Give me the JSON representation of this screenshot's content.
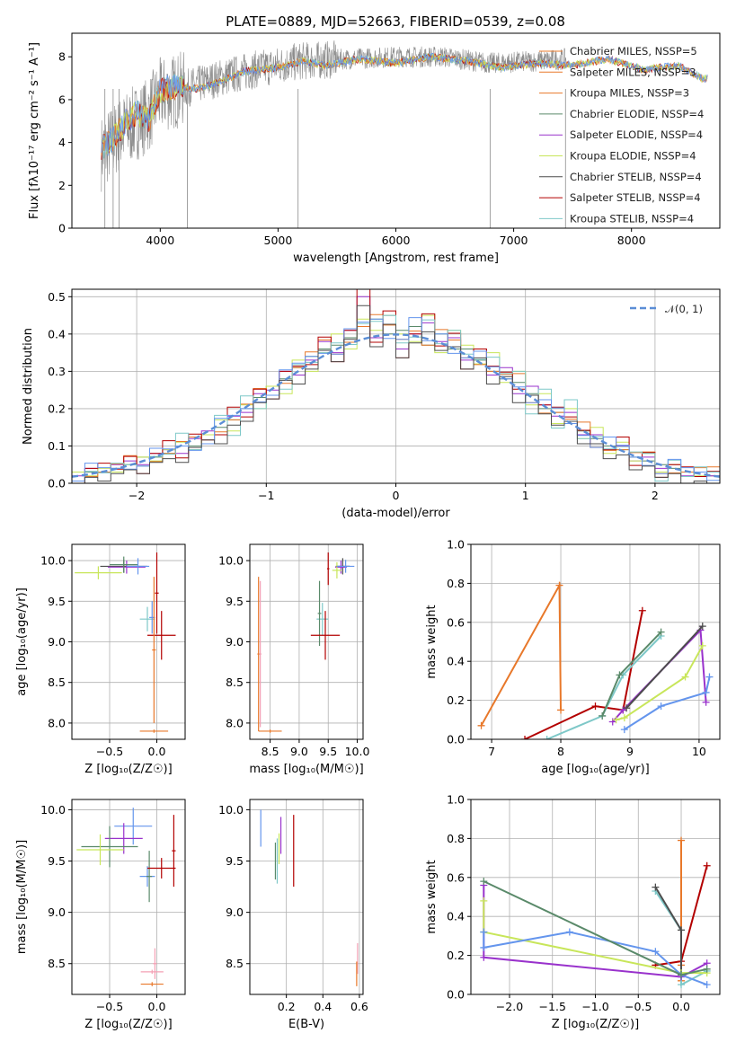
{
  "title": "PLATE=0889, MJD=52663, FIBERID=0539, z=0.08",
  "chart_data": [
    {
      "id": "spectrum",
      "type": "line",
      "xlabel": "wavelength [Angstrom, rest frame]",
      "ylabel": "Flux [fλ10⁻¹⁷ erg cm⁻² s⁻¹ A⁻¹]",
      "xlim": [
        3250,
        8750
      ],
      "ylim": [
        0,
        9.1
      ],
      "xticks": [
        "4000",
        "5000",
        "6000",
        "7000",
        "8000"
      ],
      "yticks": [
        "0",
        "2",
        "4",
        "6",
        "8"
      ],
      "legend": [
        "Chabrier MILES, NSSP=5",
        "Salpeter MILES, NSSP=3",
        "Kroupa MILES, NSSP=3",
        "Chabrier ELODIE, NSSP=4",
        "Salpeter ELODIE, NSSP=4",
        "Kroupa ELODIE, NSSP=4",
        "Chabrier STELIB, NSSP=4",
        "Salpeter STELIB, NSSP=4",
        "Kroupa STELIB, NSSP=4"
      ],
      "legend_position": "right",
      "observed": {
        "x": [
          3500,
          3700,
          3900,
          4000,
          4200,
          4500,
          4800,
          5200,
          5600,
          6000,
          6400,
          6800,
          7200,
          7450
        ],
        "y": [
          3.5,
          4.6,
          5.3,
          6.2,
          6.5,
          7.0,
          7.4,
          7.8,
          7.9,
          8.0,
          8.0,
          7.7,
          7.8,
          7.9
        ]
      },
      "models": [
        {
          "x": [
            3500,
            3600,
            3700,
            3800,
            3900,
            4000,
            4100,
            4300,
            4500,
            4700,
            5000,
            5200,
            5400,
            5700,
            6000,
            6300,
            6600,
            6900,
            7200,
            7500,
            7800,
            8100,
            8400,
            8600
          ],
          "y": [
            3.7,
            4.2,
            4.9,
            5.4,
            5.0,
            6.4,
            6.6,
            6.5,
            6.8,
            7.3,
            7.5,
            7.8,
            7.6,
            7.9,
            7.7,
            8.0,
            7.8,
            7.5,
            7.7,
            7.6,
            7.9,
            7.4,
            7.6,
            7.0
          ]
        }
      ]
    },
    {
      "id": "residuals",
      "type": "histogram",
      "xlabel": "(data-model)/error",
      "ylabel": "Normed distribution",
      "xlim": [
        -2.5,
        2.5
      ],
      "ylim": [
        0,
        0.52
      ],
      "xticks": [
        "−2",
        "−1",
        "0",
        "1",
        "2"
      ],
      "yticks": [
        "0.0",
        "0.1",
        "0.2",
        "0.3",
        "0.4",
        "0.5"
      ],
      "legend": [
        "𝒩(0, 1)"
      ],
      "legend_position": "top-right",
      "bins": [
        -2.5,
        -2.4,
        -2.3,
        -2.2,
        -2.1,
        -2.0,
        -1.9,
        -1.8,
        -1.7,
        -1.6,
        -1.5,
        -1.4,
        -1.3,
        -1.2,
        -1.1,
        -1.0,
        -0.9,
        -0.8,
        -0.7,
        -0.6,
        -0.5,
        -0.4,
        -0.3,
        -0.2,
        -0.1,
        0.0,
        0.1,
        0.2,
        0.3,
        0.4,
        0.5,
        0.6,
        0.7,
        0.8,
        0.9,
        1.0,
        1.1,
        1.2,
        1.3,
        1.4,
        1.5,
        1.6,
        1.7,
        1.8,
        1.9,
        2.0,
        2.1,
        2.2,
        2.3,
        2.4,
        2.5
      ],
      "histograms": [
        [
          0.03,
          0.03,
          0.03,
          0.04,
          0.05,
          0.07,
          0.07,
          0.08,
          0.1,
          0.1,
          0.13,
          0.15,
          0.17,
          0.2,
          0.23,
          0.26,
          0.28,
          0.31,
          0.34,
          0.36,
          0.37,
          0.39,
          0.42,
          0.44,
          0.4,
          0.41,
          0.42,
          0.37,
          0.4,
          0.36,
          0.36,
          0.33,
          0.3,
          0.28,
          0.27,
          0.24,
          0.2,
          0.19,
          0.16,
          0.14,
          0.12,
          0.1,
          0.09,
          0.07,
          0.06,
          0.05,
          0.04,
          0.03,
          0.03,
          0.02
        ],
        [
          0.02,
          0.04,
          0.03,
          0.05,
          0.06,
          0.05,
          0.08,
          0.09,
          0.08,
          0.12,
          0.14,
          0.13,
          0.18,
          0.19,
          0.24,
          0.25,
          0.3,
          0.29,
          0.33,
          0.38,
          0.35,
          0.41,
          0.5,
          0.39,
          0.45,
          0.36,
          0.4,
          0.43,
          0.38,
          0.39,
          0.33,
          0.36,
          0.29,
          0.31,
          0.24,
          0.26,
          0.21,
          0.18,
          0.19,
          0.13,
          0.13,
          0.09,
          0.1,
          0.06,
          0.07,
          0.04,
          0.05,
          0.02,
          0.03,
          0.02
        ],
        [
          0.03,
          0.02,
          0.04,
          0.03,
          0.05,
          0.07,
          0.06,
          0.09,
          0.11,
          0.09,
          0.13,
          0.17,
          0.14,
          0.21,
          0.2,
          0.26,
          0.24,
          0.33,
          0.3,
          0.35,
          0.4,
          0.36,
          0.44,
          0.41,
          0.45,
          0.4,
          0.38,
          0.45,
          0.35,
          0.41,
          0.37,
          0.32,
          0.35,
          0.27,
          0.3,
          0.21,
          0.24,
          0.16,
          0.2,
          0.12,
          0.15,
          0.08,
          0.11,
          0.06,
          0.08,
          0.03,
          0.05,
          0.03,
          0.02,
          0.03
        ]
      ],
      "normal": {
        "x": [
          -2.5,
          -2.0,
          -1.5,
          -1.0,
          -0.5,
          0.0,
          0.5,
          1.0,
          1.5,
          2.0,
          2.5
        ],
        "y": [
          0.018,
          0.054,
          0.13,
          0.242,
          0.352,
          0.399,
          0.352,
          0.242,
          0.13,
          0.054,
          0.018
        ]
      }
    },
    {
      "id": "age-vs-Z",
      "type": "scatter",
      "xlabel": "Z [log₁₀(Z/Z☉)]",
      "ylabel": "age  [log₁₀(age/yr)]",
      "xlim": [
        -0.9,
        0.3
      ],
      "ylim": [
        7.8,
        10.2
      ],
      "xticks": [
        "−0.5",
        "0.0"
      ],
      "yticks": [
        "8.0",
        "8.5",
        "9.0",
        "9.5",
        "10.0"
      ],
      "points": [
        {
          "x": -0.35,
          "y": 9.93,
          "xerr": 0.25,
          "yerr": 0.08,
          "color": "#4d4d4d"
        },
        {
          "x": -0.32,
          "y": 9.92,
          "xerr": 0.2,
          "yerr": 0.08,
          "color": "#9932cc"
        },
        {
          "x": -0.62,
          "y": 9.85,
          "xerr": 0.25,
          "yerr": 0.08,
          "color": "#c8e65a"
        },
        {
          "x": -0.35,
          "y": 9.95,
          "xerr": 0.15,
          "yerr": 0.1,
          "color": "#5a8a6a"
        },
        {
          "x": -0.2,
          "y": 9.93,
          "xerr": 0.12,
          "yerr": 0.1,
          "color": "#6495ed"
        },
        {
          "x": -0.1,
          "y": 9.28,
          "xerr": 0.08,
          "yerr": 0.15,
          "color": "#7ec8c8"
        },
        {
          "x": -0.05,
          "y": 9.3,
          "xerr": 0.03,
          "yerr": 0.2,
          "color": "#6495ed"
        },
        {
          "x": 0.05,
          "y": 9.08,
          "xerr": 0.15,
          "yerr": 0.3,
          "color": "#b30000"
        },
        {
          "x": 0.0,
          "y": 9.6,
          "xerr": 0.02,
          "yerr": 0.5,
          "color": "#b30000"
        },
        {
          "x": -0.03,
          "y": 7.9,
          "xerr": 0.15,
          "yerr": 0.02,
          "color": "#e8782a"
        },
        {
          "x": -0.03,
          "y": 8.9,
          "xerr": 0.02,
          "yerr": 0.9,
          "color": "#e8782a"
        }
      ]
    },
    {
      "id": "age-vs-mass",
      "type": "scatter",
      "xlabel": "mass [log₁₀(M/M☉)]",
      "ylabel": "",
      "xlim": [
        8.15,
        10.1
      ],
      "ylim": [
        7.8,
        10.2
      ],
      "xticks": [
        "8.5",
        "9.0",
        "9.5",
        "10.0"
      ],
      "yticks": [
        "8.0",
        "8.5",
        "9.0",
        "9.5",
        "10.0"
      ],
      "points": [
        {
          "x": 9.75,
          "y": 9.93,
          "xerr": 0.12,
          "yerr": 0.1,
          "color": "#4d4d4d"
        },
        {
          "x": 9.72,
          "y": 9.92,
          "xerr": 0.1,
          "yerr": 0.08,
          "color": "#9932cc"
        },
        {
          "x": 9.65,
          "y": 9.88,
          "xerr": 0.08,
          "yerr": 0.1,
          "color": "#c8e65a"
        },
        {
          "x": 9.8,
          "y": 9.93,
          "xerr": 0.15,
          "yerr": 0.08,
          "color": "#6495ed"
        },
        {
          "x": 9.4,
          "y": 9.28,
          "xerr": 0.1,
          "yerr": 0.2,
          "color": "#7ec8c8"
        },
        {
          "x": 9.35,
          "y": 9.35,
          "xerr": 0.03,
          "yerr": 0.4,
          "color": "#5a8a6a"
        },
        {
          "x": 9.45,
          "y": 9.08,
          "xerr": 0.25,
          "yerr": 0.3,
          "color": "#b30000"
        },
        {
          "x": 9.5,
          "y": 9.9,
          "xerr": 0.02,
          "yerr": 0.2,
          "color": "#b30000"
        },
        {
          "x": 8.3,
          "y": 8.85,
          "xerr": 0.02,
          "yerr": 0.95,
          "color": "#e8782a"
        },
        {
          "x": 8.5,
          "y": 7.9,
          "xerr": 0.2,
          "yerr": 0.02,
          "color": "#e8782a"
        },
        {
          "x": 8.33,
          "y": 8.85,
          "xerr": 0.02,
          "yerr": 0.9,
          "color": "#f4a0b4"
        }
      ]
    },
    {
      "id": "mass-weight-vs-age",
      "type": "line",
      "xlabel": "age  [log₁₀(age/yr)]",
      "ylabel": "mass weight",
      "xlim": [
        6.7,
        10.3
      ],
      "ylim": [
        0,
        1
      ],
      "xticks": [
        "7",
        "8",
        "9",
        "10"
      ],
      "yticks": [
        "0.0",
        "0.2",
        "0.4",
        "0.6",
        "0.8",
        "1.0"
      ],
      "series": [
        {
          "color": "#e8782a",
          "x": [
            6.85,
            7.98,
            8.0
          ],
          "y": [
            0.07,
            0.79,
            0.15
          ]
        },
        {
          "color": "#b30000",
          "x": [
            7.48,
            8.5,
            8.9,
            9.18
          ],
          "y": [
            0.0,
            0.17,
            0.15,
            0.66
          ]
        },
        {
          "color": "#7ec8c8",
          "x": [
            7.8,
            8.6,
            8.9,
            9.45
          ],
          "y": [
            0.0,
            0.12,
            0.33,
            0.53
          ]
        },
        {
          "color": "#5a8a6a",
          "x": [
            8.6,
            8.85,
            9.45
          ],
          "y": [
            0.12,
            0.33,
            0.55
          ]
        },
        {
          "color": "#9932cc",
          "x": [
            8.75,
            8.9,
            10.02,
            10.1
          ],
          "y": [
            0.09,
            0.15,
            0.56,
            0.19
          ]
        },
        {
          "color": "#c8e65a",
          "x": [
            8.8,
            8.92,
            9.8,
            10.05
          ],
          "y": [
            0.1,
            0.11,
            0.32,
            0.48
          ]
        },
        {
          "color": "#6495ed",
          "x": [
            8.92,
            9.45,
            10.1,
            10.15
          ],
          "y": [
            0.05,
            0.17,
            0.24,
            0.32
          ]
        },
        {
          "color": "#4d4d4d",
          "x": [
            8.95,
            10.05
          ],
          "y": [
            0.16,
            0.58
          ]
        }
      ]
    },
    {
      "id": "mass-vs-Z",
      "type": "scatter",
      "xlabel": "Z [log₁₀(Z/Z☉)]",
      "ylabel": "mass [log₁₀(M/M☉)]",
      "xlim": [
        -0.9,
        0.3
      ],
      "ylim": [
        8.2,
        10.1
      ],
      "xticks": [
        "−0.5",
        "0.0"
      ],
      "yticks": [
        "8.5",
        "9.0",
        "9.5",
        "10.0"
      ],
      "points": [
        {
          "x": -0.25,
          "y": 9.84,
          "xerr": 0.2,
          "yerr": 0.18,
          "color": "#6495ed"
        },
        {
          "x": -0.35,
          "y": 9.72,
          "xerr": 0.2,
          "yerr": 0.15,
          "color": "#9932cc"
        },
        {
          "x": -0.5,
          "y": 9.64,
          "xerr": 0.3,
          "yerr": 0.2,
          "color": "#5a8a6a"
        },
        {
          "x": -0.6,
          "y": 9.61,
          "xerr": 0.25,
          "yerr": 0.15,
          "color": "#c8e65a"
        },
        {
          "x": -0.1,
          "y": 9.35,
          "xerr": 0.08,
          "yerr": 0.1,
          "color": "#6495ed"
        },
        {
          "x": -0.08,
          "y": 9.35,
          "xerr": 0.03,
          "yerr": 0.25,
          "color": "#5a8a6a"
        },
        {
          "x": 0.05,
          "y": 9.43,
          "xerr": 0.15,
          "yerr": 0.1,
          "color": "#b30000"
        },
        {
          "x": 0.18,
          "y": 9.6,
          "xerr": 0.02,
          "yerr": 0.35,
          "color": "#b30000"
        },
        {
          "x": -0.05,
          "y": 8.42,
          "xerr": 0.12,
          "yerr": 0.02,
          "color": "#f4a0b4"
        },
        {
          "x": -0.05,
          "y": 8.3,
          "xerr": 0.12,
          "yerr": 0.02,
          "color": "#e8782a"
        },
        {
          "x": -0.02,
          "y": 8.5,
          "xerr": 0.02,
          "yerr": 0.15,
          "color": "#f4a0b4"
        }
      ]
    },
    {
      "id": "mass-vs-ebv",
      "type": "scatter",
      "xlabel": "E(B-V)",
      "ylabel": "",
      "xlim": [
        0.0,
        0.62
      ],
      "ylim": [
        8.2,
        10.1
      ],
      "xticks": [
        "0.2",
        "0.4",
        "0.6"
      ],
      "yticks": [
        "8.5",
        "9.0",
        "9.5",
        "10.0"
      ],
      "points": [
        {
          "x": 0.06,
          "y": 9.82,
          "xerr": 0.0,
          "yerr": 0.18,
          "color": "#6495ed"
        },
        {
          "x": 0.17,
          "y": 9.75,
          "xerr": 0.0,
          "yerr": 0.18,
          "color": "#9932cc"
        },
        {
          "x": 0.16,
          "y": 9.62,
          "xerr": 0.0,
          "yerr": 0.15,
          "color": "#c8e65a"
        },
        {
          "x": 0.14,
          "y": 9.5,
          "xerr": 0.0,
          "yerr": 0.18,
          "color": "#5a8a6a"
        },
        {
          "x": 0.15,
          "y": 9.5,
          "xerr": 0.0,
          "yerr": 0.22,
          "color": "#7ec8c8"
        },
        {
          "x": 0.24,
          "y": 9.6,
          "xerr": 0.0,
          "yerr": 0.35,
          "color": "#b30000"
        },
        {
          "x": 0.59,
          "y": 8.55,
          "xerr": 0.0,
          "yerr": 0.15,
          "color": "#f4a0b4"
        },
        {
          "x": 0.585,
          "y": 8.4,
          "xerr": 0.0,
          "yerr": 0.12,
          "color": "#e8782a"
        }
      ]
    },
    {
      "id": "mass-weight-vs-Z",
      "type": "line",
      "xlabel": "Z [log₁₀(Z/Z☉)]",
      "ylabel": "mass weight",
      "xlim": [
        -2.45,
        0.45
      ],
      "ylim": [
        0,
        1
      ],
      "xticks": [
        "−2.0",
        "−1.5",
        "−1.0",
        "−0.5",
        "0.0"
      ],
      "yticks": [
        "0.0",
        "0.2",
        "0.4",
        "0.6",
        "0.8",
        "1.0"
      ],
      "series": [
        {
          "color": "#e8782a",
          "x": [
            0.0,
            0.0,
            0.0
          ],
          "y": [
            0.79,
            0.07,
            0.15
          ]
        },
        {
          "color": "#b30000",
          "x": [
            -0.3,
            0.0,
            0.3
          ],
          "y": [
            0.15,
            0.17,
            0.66
          ]
        },
        {
          "color": "#7ec8c8",
          "x": [
            -0.3,
            0.0,
            0.0,
            0.3
          ],
          "y": [
            0.53,
            0.33,
            0.05,
            0.12
          ]
        },
        {
          "color": "#4d4d4d",
          "x": [
            -0.3,
            0.0,
            0.0
          ],
          "y": [
            0.55,
            0.33,
            0.1
          ]
        },
        {
          "color": "#9932cc",
          "x": [
            -2.3,
            -2.3,
            0.0,
            0.3
          ],
          "y": [
            0.56,
            0.19,
            0.09,
            0.16
          ]
        },
        {
          "color": "#c8e65a",
          "x": [
            -2.3,
            -2.3,
            0.0,
            0.3
          ],
          "y": [
            0.48,
            0.32,
            0.11,
            0.11
          ]
        },
        {
          "color": "#6495ed",
          "x": [
            -2.3,
            -2.3,
            -1.3,
            -0.3,
            0.0,
            0.3
          ],
          "y": [
            0.32,
            0.24,
            0.32,
            0.22,
            0.1,
            0.05
          ]
        },
        {
          "color": "#5a8a6a",
          "x": [
            -2.3,
            0.0,
            0.3
          ],
          "y": [
            0.58,
            0.1,
            0.13
          ]
        }
      ]
    }
  ],
  "palette": [
    "#e8782a",
    "#5a8a6a",
    "#9932cc",
    "#c8e65a",
    "#4d4d4d",
    "#b30000",
    "#7ec8c8",
    "#6495ed"
  ]
}
